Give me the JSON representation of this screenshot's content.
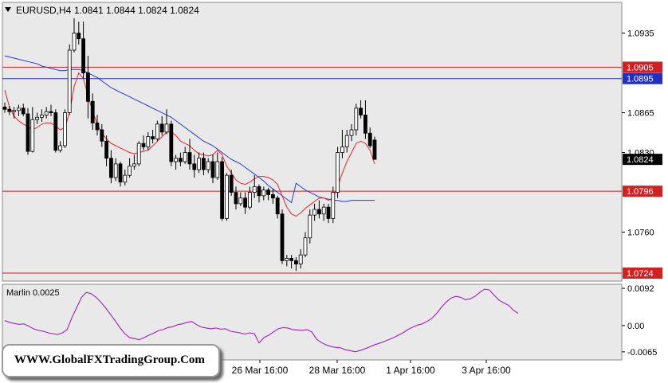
{
  "header": {
    "symbol": "EURUSD,H4",
    "ohlc": "1.0841 1.0844 1.0824 1.0824"
  },
  "watermark": "WWW.GlobalFXTradingGroup.Com",
  "colors": {
    "background": "#e9e9e9",
    "bull_candle": "#ffffff",
    "bear_candle": "#000000",
    "ma_red": "#e8242a",
    "ma_blue": "#1f3fd9",
    "level_red": "#d32020",
    "level_blue": "#2030c0",
    "marlin": "#a020c8"
  },
  "chart_data": [
    {
      "type": "candlestick",
      "title": "EURUSD,H4",
      "y_ticks": [
        "1.0935",
        "1.0865",
        "1.0830",
        "1.0760"
      ],
      "x_ticks": [
        "26 Mar 16:00",
        "28 Mar 16:00",
        "1 Apr 16:00",
        "3 Apr 16:00"
      ],
      "ylim": [
        1.0717,
        1.0962
      ],
      "levels": [
        {
          "price": 1.0905,
          "label": "1.0905",
          "color": "red"
        },
        {
          "price": 1.0895,
          "label": "1.0895",
          "color": "blue"
        },
        {
          "price": 1.0796,
          "label": "1.0796",
          "color": "red"
        },
        {
          "price": 1.0724,
          "label": "1.0724",
          "color": "red"
        }
      ],
      "current_price": {
        "price": 1.0824,
        "label": "1.0824"
      },
      "candles": [
        [
          1.087,
          1.0874,
          1.0865,
          1.0868
        ],
        [
          1.0868,
          1.0871,
          1.0863,
          1.0866
        ],
        [
          1.0866,
          1.087,
          1.086,
          1.0867
        ],
        [
          1.0867,
          1.0872,
          1.0862,
          1.0869
        ],
        [
          1.0869,
          1.0873,
          1.0862,
          1.0864
        ],
        [
          1.0864,
          1.0869,
          1.0828,
          1.0831
        ],
        [
          1.0831,
          1.087,
          1.083,
          1.0859
        ],
        [
          1.0859,
          1.0865,
          1.0855,
          1.0861
        ],
        [
          1.0861,
          1.0868,
          1.0857,
          1.0863
        ],
        [
          1.0863,
          1.087,
          1.086,
          1.0866
        ],
        [
          1.0866,
          1.0872,
          1.0862,
          1.0865
        ],
        [
          1.0865,
          1.0868,
          1.083,
          1.0832
        ],
        [
          1.0832,
          1.084,
          1.083,
          1.0836
        ],
        [
          1.0836,
          1.0868,
          1.0834,
          1.0865
        ],
        [
          1.0865,
          1.0925,
          1.0863,
          1.092
        ],
        [
          1.092,
          1.0948,
          1.0918,
          1.0935
        ],
        [
          1.0935,
          1.0945,
          1.0925,
          1.093
        ],
        [
          1.093,
          1.0945,
          1.0895,
          1.09
        ],
        [
          1.09,
          1.0915,
          1.086,
          1.0875
        ],
        [
          1.0875,
          1.0882,
          1.085,
          1.0856
        ],
        [
          1.0856,
          1.0863,
          1.0845,
          1.085
        ],
        [
          1.085,
          1.0855,
          1.0835,
          1.084
        ],
        [
          1.084,
          1.0845,
          1.0818,
          1.0825
        ],
        [
          1.0825,
          1.0832,
          1.0803,
          1.0808
        ],
        [
          1.0808,
          1.0825,
          1.0805,
          1.082
        ],
        [
          1.082,
          1.0822,
          1.08,
          1.0804
        ],
        [
          1.0804,
          1.0815,
          1.0801,
          1.081
        ],
        [
          1.081,
          1.0825,
          1.0808,
          1.0818
        ],
        [
          1.0818,
          1.0828,
          1.0815,
          1.082
        ],
        [
          1.082,
          1.084,
          1.0818,
          1.0838
        ],
        [
          1.0838,
          1.0845,
          1.0832,
          1.0835
        ],
        [
          1.0835,
          1.0848,
          1.0832,
          1.0844
        ],
        [
          1.0844,
          1.085,
          1.0838,
          1.0842
        ],
        [
          1.0842,
          1.0858,
          1.084,
          1.0855
        ],
        [
          1.0855,
          1.0862,
          1.0845,
          1.0848
        ],
        [
          1.0848,
          1.0868,
          1.0846,
          1.0855
        ],
        [
          1.0855,
          1.0858,
          1.0818,
          1.0822
        ],
        [
          1.0822,
          1.0828,
          1.0815,
          1.0825
        ],
        [
          1.0825,
          1.083,
          1.0818,
          1.0822
        ],
        [
          1.0822,
          1.0835,
          1.082,
          1.083
        ],
        [
          1.083,
          1.0842,
          1.0815,
          1.082
        ],
        [
          1.082,
          1.0828,
          1.0808,
          1.0815
        ],
        [
          1.0815,
          1.083,
          1.0812,
          1.0825
        ],
        [
          1.0825,
          1.083,
          1.081,
          1.0815
        ],
        [
          1.0815,
          1.0825,
          1.0812,
          1.0822
        ],
        [
          1.0822,
          1.0828,
          1.0803,
          1.0808
        ],
        [
          1.0808,
          1.083,
          1.0806,
          1.0822
        ],
        [
          1.0822,
          1.0826,
          1.077,
          1.0772
        ],
        [
          1.0772,
          1.0812,
          1.077,
          1.081
        ],
        [
          1.081,
          1.0815,
          1.0792,
          1.0795
        ],
        [
          1.0795,
          1.08,
          1.078,
          1.0785
        ],
        [
          1.0785,
          1.0795,
          1.0783,
          1.079
        ],
        [
          1.079,
          1.0795,
          1.0776,
          1.0782
        ],
        [
          1.0782,
          1.08,
          1.078,
          1.0795
        ],
        [
          1.0795,
          1.081,
          1.079,
          1.08
        ],
        [
          1.08,
          1.0802,
          1.0786,
          1.0792
        ],
        [
          1.0792,
          1.08,
          1.0788,
          1.0797
        ],
        [
          1.0797,
          1.0799,
          1.0788,
          1.0793
        ],
        [
          1.0793,
          1.0798,
          1.0785,
          1.079
        ],
        [
          1.079,
          1.0792,
          1.0772,
          1.0776
        ],
        [
          1.0776,
          1.078,
          1.0732,
          1.0735
        ],
        [
          1.0735,
          1.074,
          1.073,
          1.0737
        ],
        [
          1.0737,
          1.074,
          1.0728,
          1.0735
        ],
        [
          1.0735,
          1.0738,
          1.0726,
          1.0732
        ],
        [
          1.0732,
          1.0745,
          1.0728,
          1.074
        ],
        [
          1.074,
          1.076,
          1.0738,
          1.0755
        ],
        [
          1.0755,
          1.078,
          1.075,
          1.0775
        ],
        [
          1.0775,
          1.0785,
          1.077,
          1.078
        ],
        [
          1.078,
          1.0788,
          1.0772,
          1.0776
        ],
        [
          1.0776,
          1.0785,
          1.077,
          1.0782
        ],
        [
          1.0782,
          1.0785,
          1.0768,
          1.0772
        ],
        [
          1.0772,
          1.08,
          1.0768,
          1.0795
        ],
        [
          1.0795,
          1.0835,
          1.079,
          1.083
        ],
        [
          1.083,
          1.085,
          1.0825,
          1.0835
        ],
        [
          1.0835,
          1.085,
          1.083,
          1.0845
        ],
        [
          1.0845,
          1.0855,
          1.084,
          1.085
        ],
        [
          1.085,
          1.0873,
          1.0845,
          1.0869
        ],
        [
          1.0869,
          1.0876,
          1.086,
          1.0863
        ],
        [
          1.0863,
          1.0876,
          1.0842,
          1.0847
        ],
        [
          1.0847,
          1.0852,
          1.0834,
          1.0836
        ],
        [
          1.0841,
          1.0844,
          1.0824,
          1.0824
        ]
      ],
      "ma_red": [
        1.0885,
        1.087,
        1.0862,
        1.0858,
        1.0855,
        1.0853,
        1.085,
        1.0852,
        1.0855,
        1.0856,
        1.0856,
        1.0853,
        1.085,
        1.0852,
        1.0865,
        1.0888,
        1.09,
        1.0895,
        1.088,
        1.0866,
        1.0855,
        1.0847,
        1.0842,
        1.0838,
        1.0836,
        1.0834,
        1.0832,
        1.083,
        1.0829,
        1.083,
        1.0831,
        1.0832,
        1.0836,
        1.084,
        1.0844,
        1.0848,
        1.0848,
        1.0845,
        1.084,
        1.0838,
        1.0836,
        1.0832,
        1.0829,
        1.0828,
        1.0827,
        1.0828,
        1.0832,
        1.0828,
        1.0818,
        1.0812,
        1.0806,
        1.0803,
        1.0802,
        1.0804,
        1.0807,
        1.0809,
        1.0809,
        1.0808,
        1.0806,
        1.0802,
        1.0792,
        1.0782,
        1.0776,
        1.0774,
        1.0777,
        1.0781,
        1.0784,
        1.0787,
        1.079,
        1.079,
        1.0788,
        1.079,
        1.08,
        1.0812,
        1.0822,
        1.083,
        1.0838,
        1.084,
        1.0838,
        1.0832,
        1.082
      ],
      "ma_blue": [
        1.0915,
        1.0914,
        1.0913,
        1.0912,
        1.0911,
        1.091,
        1.0909,
        1.0908,
        1.0906,
        1.0905,
        1.0904,
        1.0903,
        1.0902,
        1.0902,
        1.0903,
        1.0903,
        1.0903,
        1.0902,
        1.09,
        1.0898,
        1.0896,
        1.0893,
        1.089,
        1.0887,
        1.0885,
        1.0883,
        1.0881,
        1.0879,
        1.0877,
        1.0875,
        1.0873,
        1.0871,
        1.0869,
        1.0867,
        1.0865,
        1.0863,
        1.0861,
        1.0858,
        1.0855,
        1.0852,
        1.0849,
        1.0846,
        1.0843,
        1.084,
        1.0838,
        1.0836,
        1.0833,
        1.083,
        1.0827,
        1.0824,
        1.0822,
        1.082,
        1.0817,
        1.0814,
        1.0811,
        1.0808,
        1.0805,
        1.0801,
        1.0798,
        1.0795,
        1.0792,
        1.0789,
        1.0786,
        1.0803,
        1.08,
        1.0797,
        1.0795,
        1.0793,
        1.0791,
        1.079,
        1.0789,
        1.0788,
        1.0788,
        1.0787,
        1.0787,
        1.0788,
        1.0788,
        1.0788,
        1.0788,
        1.0788,
        1.0788
      ]
    },
    {
      "type": "line",
      "title": "Marlin 0.0025",
      "y_ticks": [
        "0.0092",
        "0.00",
        "-0.0065"
      ],
      "ylim": [
        -0.0085,
        0.0102
      ],
      "values": [
        0.0012,
        0.0008,
        0.0005,
        0.0003,
        0.0004,
        -0.0002,
        -0.0008,
        -0.0012,
        -0.0014,
        -0.0018,
        -0.002,
        -0.0022,
        -0.0018,
        -0.001,
        0.002,
        0.0045,
        0.007,
        0.0082,
        0.0079,
        0.007,
        0.0058,
        0.0044,
        0.0028,
        0.0012,
        -0.0005,
        -0.002,
        -0.003,
        -0.0032,
        -0.0035,
        -0.003,
        -0.0024,
        -0.0019,
        -0.0013,
        -0.001,
        -0.0005,
        -0.0003,
        0.0002,
        0.0004,
        0.0008,
        0.001,
        0.0002,
        -0.0004,
        -0.0006,
        -0.0008,
        -0.0006,
        -0.0009,
        -0.0008,
        -0.0014,
        -0.0016,
        -0.0018,
        -0.0021,
        -0.0018,
        -0.002,
        -0.0043,
        -0.003,
        -0.0024,
        -0.0016,
        -0.0008,
        -0.0005,
        -0.0006,
        -0.001,
        -0.0011,
        -0.0012,
        -0.001,
        -0.0016,
        -0.0034,
        -0.0042,
        -0.0048,
        -0.0052,
        -0.0054,
        -0.0055,
        -0.006,
        -0.0062,
        -0.0065,
        -0.0062,
        -0.0058,
        -0.0053,
        -0.0048,
        -0.0044,
        -0.004,
        -0.0035,
        -0.003,
        -0.0024,
        -0.0018,
        -0.001,
        -0.0004,
        0.0001,
        0.0004,
        0.001,
        0.0018,
        0.003,
        0.0045,
        0.0058,
        0.0068,
        0.0072,
        0.007,
        0.0064,
        0.0066,
        0.0072,
        0.0082,
        0.009,
        0.0088,
        0.0075,
        0.0063,
        0.0056,
        0.005,
        0.0038,
        0.003
      ]
    }
  ]
}
